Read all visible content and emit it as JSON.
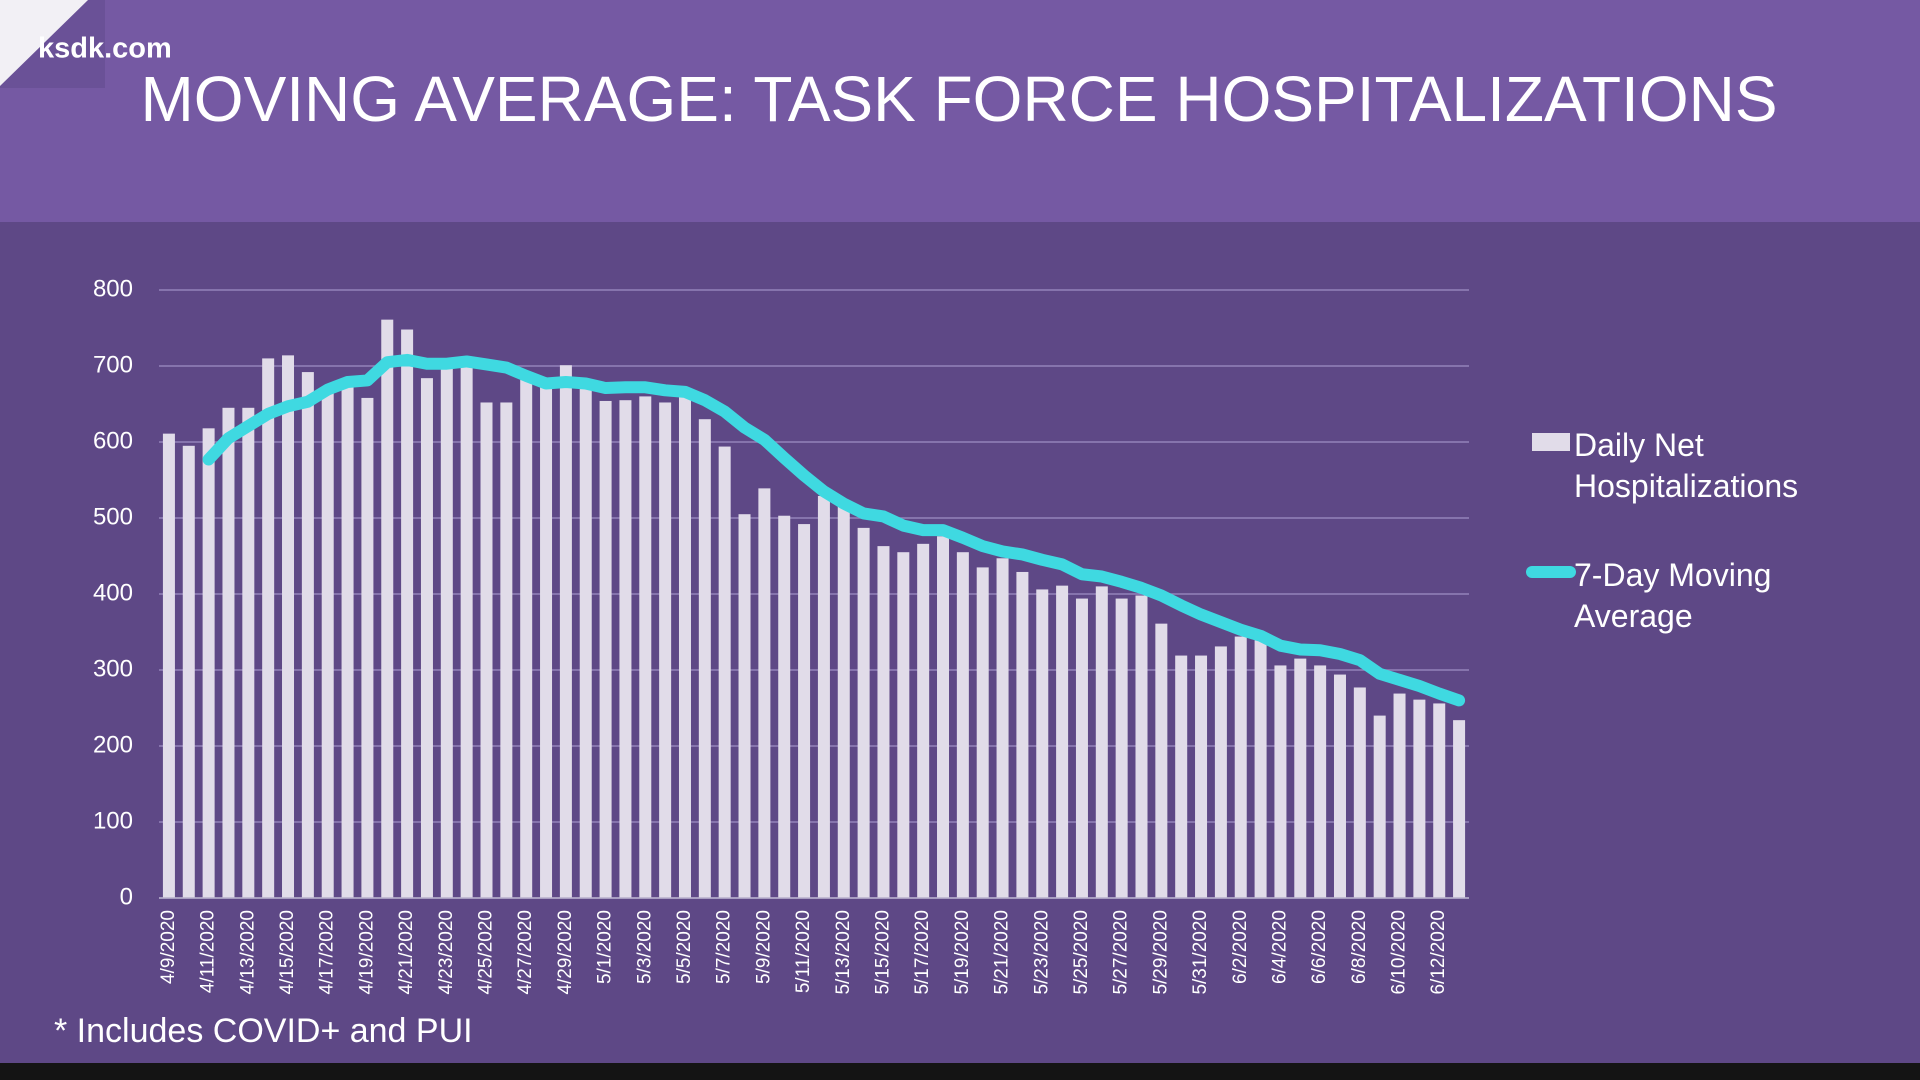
{
  "watermark": "ksdk.com",
  "chart_data": {
    "type": "combo",
    "title": "MOVING AVERAGE: TASK FORCE HOSPITALIZATIONS",
    "footnote": "* Includes COVID+ and PUI",
    "categories": [
      "4/9/2020",
      null,
      "4/11/2020",
      null,
      "4/13/2020",
      null,
      "4/15/2020",
      null,
      "4/17/2020",
      null,
      "4/19/2020",
      null,
      "4/21/2020",
      null,
      "4/23/2020",
      null,
      "4/25/2020",
      null,
      "4/27/2020",
      null,
      "4/29/2020",
      null,
      "5/1/2020",
      null,
      "5/3/2020",
      null,
      "5/5/2020",
      null,
      "5/7/2020",
      null,
      "5/9/2020",
      null,
      "5/11/2020",
      null,
      "5/13/2020",
      null,
      "5/15/2020",
      null,
      "5/17/2020",
      null,
      "5/19/2020",
      null,
      "5/21/2020",
      null,
      "5/23/2020",
      null,
      "5/25/2020",
      null,
      "5/27/2020",
      null,
      "5/29/2020",
      null,
      "5/31/2020",
      null,
      "6/2/2020",
      null,
      "6/4/2020",
      null,
      "6/6/2020",
      null,
      "6/8/2020",
      null,
      "6/10/2020",
      null,
      "6/12/2020",
      null
    ],
    "series": [
      {
        "name": "Daily Net Hospitalizations",
        "type": "bar",
        "color": "#e1dce9",
        "values": [
          611,
          595,
          618,
          645,
          645,
          710,
          714,
          692,
          665,
          680,
          658,
          761,
          748,
          684,
          698,
          700,
          652,
          652,
          682,
          672,
          701,
          670,
          654,
          655,
          660,
          652,
          664,
          630,
          594,
          505,
          539,
          503,
          492,
          529,
          516,
          487,
          463,
          455,
          466,
          476,
          455,
          435,
          447,
          429,
          406,
          411,
          394,
          410,
          394,
          398,
          361,
          319,
          319,
          331,
          344,
          339,
          306,
          315,
          306,
          294,
          277,
          240,
          269,
          261,
          256,
          234
        ]
      },
      {
        "name": "7-Day Moving Average",
        "type": "line",
        "color": "#3fd9e1",
        "values": [
          null,
          null,
          577,
          605,
          621,
          637,
          647,
          653,
          669,
          679,
          681,
          705,
          708,
          703,
          703,
          706,
          702,
          698,
          687,
          677,
          679,
          677,
          671,
          672,
          672,
          668,
          666,
          655,
          640,
          619,
          603,
          579,
          556,
          535,
          519,
          506,
          502,
          490,
          484,
          484,
          474,
          463,
          456,
          452,
          445,
          439,
          426,
          423,
          416,
          408,
          398,
          385,
          373,
          363,
          353,
          345,
          332,
          327,
          326,
          321,
          313,
          295,
          287,
          279,
          269,
          260
        ]
      }
    ],
    "ylim": [
      0,
      800
    ],
    "yticks": [
      0,
      100,
      200,
      300,
      400,
      500,
      600,
      700,
      800
    ],
    "grid": true,
    "legend": "right"
  }
}
